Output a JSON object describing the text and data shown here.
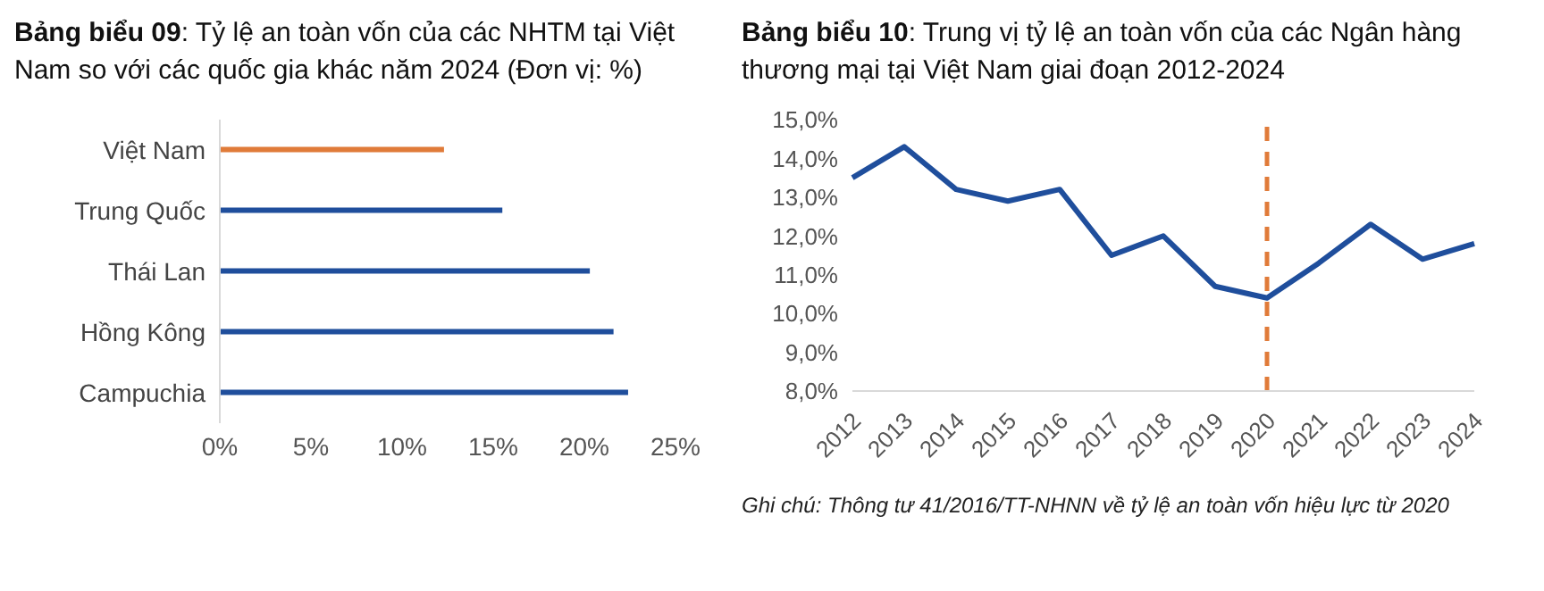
{
  "chart_data": [
    {
      "type": "bar",
      "title": "Bảng biểu 09: Tỷ lệ an toàn vốn của các NHTM tại Việt Nam so với các quốc gia khác năm 2024 (Đơn vị: %)",
      "orientation": "horizontal",
      "categories": [
        "Việt Nam",
        "Trung Quốc",
        "Thái Lan",
        "Hồng Kông",
        "Campuchia"
      ],
      "values": [
        12.3,
        15.5,
        20.3,
        21.6,
        22.4
      ],
      "colors": [
        "#e07b39",
        "#1f4e9c",
        "#1f4e9c",
        "#1f4e9c",
        "#1f4e9c"
      ],
      "xlim": [
        0,
        25
      ],
      "xticks": [
        {
          "value": 0,
          "label": "0%"
        },
        {
          "value": 5,
          "label": "5%"
        },
        {
          "value": 10,
          "label": "10%"
        },
        {
          "value": 15,
          "label": "15%"
        },
        {
          "value": 20,
          "label": "20%"
        },
        {
          "value": 25,
          "label": "25%"
        }
      ],
      "grid": false,
      "legend": false
    },
    {
      "type": "line",
      "title": "Bảng biểu 10: Trung vị tỷ lệ an toàn vốn của các Ngân hàng thương mại tại Việt Nam giai đoạn 2012-2024",
      "categories": [
        "2012",
        "2013",
        "2014",
        "2015",
        "2016",
        "2017",
        "2018",
        "2019",
        "2020",
        "2021",
        "2022",
        "2023",
        "2024"
      ],
      "series": [
        {
          "color": "#1f4e9c",
          "values": [
            13.5,
            14.3,
            13.2,
            12.9,
            13.2,
            11.5,
            12.0,
            10.7,
            10.4,
            11.3,
            12.3,
            11.4,
            11.8
          ]
        }
      ],
      "ylim": [
        8,
        15
      ],
      "yticks": [
        {
          "value": 8,
          "label": "8,0%"
        },
        {
          "value": 9,
          "label": "9,0%"
        },
        {
          "value": 10,
          "label": "10,0%"
        },
        {
          "value": 11,
          "label": "11,0%"
        },
        {
          "value": 12,
          "label": "12,0%"
        },
        {
          "value": 13,
          "label": "13,0%"
        },
        {
          "value": 14,
          "label": "14,0%"
        },
        {
          "value": 15,
          "label": "15,0%"
        }
      ],
      "ref_lines": [
        {
          "axis": "x",
          "value": "2020",
          "color": "#e07b39",
          "line_style": "dashed"
        }
      ],
      "marker": "none",
      "line_style": "solid",
      "grid": false,
      "legend": false,
      "annotations": [
        "Ghi chú: Thông tư 41/2016/TT-NHNN về tỷ lệ an toàn vốn hiệu lực từ 2020"
      ]
    }
  ]
}
